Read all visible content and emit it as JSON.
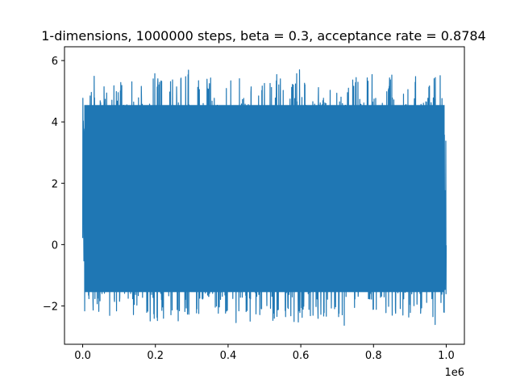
{
  "chart_data": {
    "type": "line",
    "title": "1-dimensions, 1000000 steps, beta = 0.3, acceptance rate = 0.8784",
    "xlabel": "",
    "ylabel": "",
    "x_offset_label": "1e6",
    "xlim": [
      -0.05,
      1.05
    ],
    "ylim": [
      -3.25,
      6.45
    ],
    "xticks": [
      0.0,
      0.2,
      0.4,
      0.6,
      0.8,
      1.0
    ],
    "xtick_labels": [
      "0.0",
      "0.2",
      "0.4",
      "0.6",
      "0.8",
      "1.0"
    ],
    "yticks": [
      -2,
      0,
      2,
      4,
      6
    ],
    "ytick_labels": [
      "−2",
      "0",
      "2",
      "4",
      "6"
    ],
    "grid": false,
    "series": [
      {
        "color": "#1f77b4",
        "x": [
          0.0,
          1.0
        ],
        "y_range": [
          -2.9,
          6.1
        ],
        "typical_band": [
          -1.8,
          4.8
        ],
        "envelope": {
          "x": [
            0.0,
            0.005,
            0.02,
            0.04,
            0.06,
            0.08,
            0.1,
            0.11,
            0.13,
            0.15,
            0.18,
            0.2,
            0.22,
            0.25,
            0.29,
            0.3,
            0.33,
            0.36,
            0.4,
            0.43,
            0.46,
            0.5,
            0.53,
            0.56,
            0.585,
            0.6,
            0.63,
            0.66,
            0.69,
            0.72,
            0.75,
            0.775,
            0.8,
            0.83,
            0.86,
            0.89,
            0.92,
            0.95,
            0.97,
            0.985,
            1.0
          ],
          "y_max": [
            4.9,
            5.0,
            5.1,
            6.05,
            5.3,
            5.2,
            5.4,
            5.3,
            5.6,
            5.2,
            5.5,
            5.7,
            5.3,
            5.4,
            6.0,
            5.5,
            5.3,
            5.6,
            5.2,
            5.8,
            5.4,
            5.3,
            5.7,
            5.2,
            5.5,
            5.8,
            5.3,
            5.6,
            5.4,
            5.2,
            5.6,
            5.3,
            5.9,
            5.4,
            5.6,
            5.3,
            5.7,
            5.2,
            5.8,
            5.5,
            5.7
          ],
          "y_min": [
            -2.0,
            -2.4,
            -2.3,
            -2.2,
            -2.4,
            -2.5,
            -2.1,
            -1.0,
            -2.4,
            -2.3,
            -2.5,
            -2.7,
            -2.4,
            -2.6,
            -2.3,
            -2.5,
            -2.2,
            -2.3,
            -2.4,
            -2.6,
            -2.5,
            -2.3,
            -2.6,
            -2.4,
            -2.9,
            -2.5,
            -2.3,
            -2.6,
            -2.4,
            -2.7,
            -2.5,
            -0.8,
            -2.4,
            -2.6,
            -2.3,
            -2.5,
            -2.2,
            -2.4,
            -2.7,
            -2.3,
            -2.4
          ]
        }
      }
    ]
  }
}
